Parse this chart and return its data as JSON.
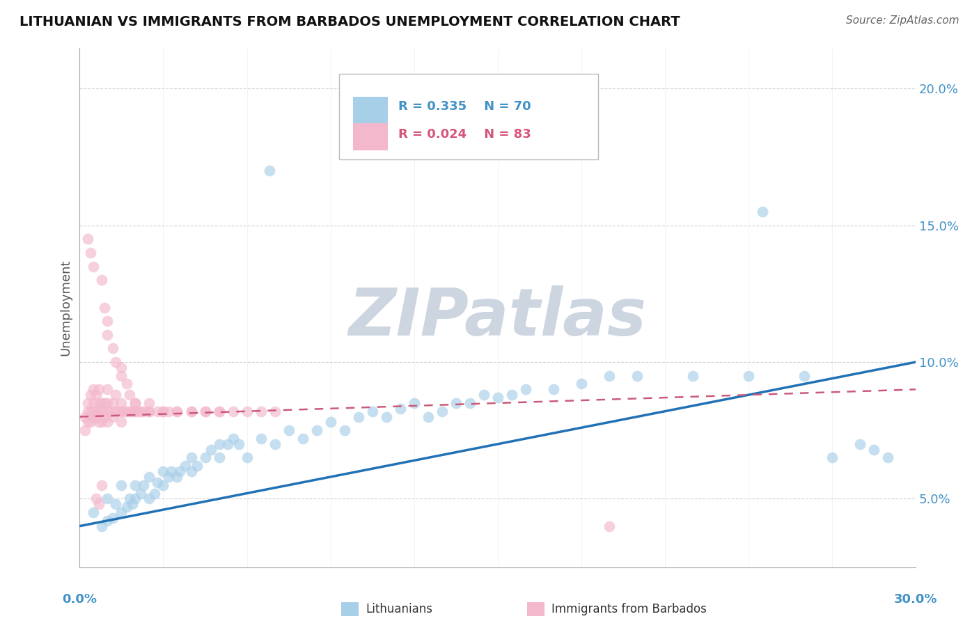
{
  "title": "LITHUANIAN VS IMMIGRANTS FROM BARBADOS UNEMPLOYMENT CORRELATION CHART",
  "source": "Source: ZipAtlas.com",
  "ylabel": "Unemployment",
  "xlim": [
    0.0,
    0.3
  ],
  "ylim": [
    0.025,
    0.215
  ],
  "yticks": [
    0.05,
    0.1,
    0.15,
    0.2
  ],
  "ytick_labels": [
    "5.0%",
    "10.0%",
    "15.0%",
    "20.0%"
  ],
  "xtick_positions": [
    0.0,
    0.03,
    0.06,
    0.09,
    0.12,
    0.15,
    0.18,
    0.21,
    0.24,
    0.27,
    0.3
  ],
  "legend_R1": "R = 0.335",
  "legend_N1": "N = 70",
  "legend_R2": "R = 0.024",
  "legend_N2": "N = 83",
  "color_blue_scatter": "#a8cfe8",
  "color_pink_scatter": "#f4b8cc",
  "color_blue_line": "#2171b5",
  "color_pink_line": "#cb5a7a",
  "color_blue_text": "#4292c6",
  "color_pink_text": "#d6567a",
  "color_grid": "#cccccc",
  "watermark_text": "ZIPatlas",
  "watermark_color": "#cdd5e0",
  "title_fontsize": 14,
  "tick_fontsize": 13,
  "scatter_size": 130,
  "scatter_alpha": 0.65,
  "blue_x": [
    0.005,
    0.008,
    0.01,
    0.01,
    0.012,
    0.013,
    0.015,
    0.015,
    0.017,
    0.018,
    0.019,
    0.02,
    0.02,
    0.022,
    0.023,
    0.025,
    0.025,
    0.027,
    0.028,
    0.03,
    0.03,
    0.032,
    0.033,
    0.035,
    0.036,
    0.038,
    0.04,
    0.04,
    0.042,
    0.045,
    0.047,
    0.05,
    0.05,
    0.053,
    0.055,
    0.057,
    0.06,
    0.065,
    0.068,
    0.07,
    0.075,
    0.08,
    0.085,
    0.09,
    0.095,
    0.1,
    0.105,
    0.11,
    0.115,
    0.12,
    0.125,
    0.13,
    0.135,
    0.14,
    0.145,
    0.15,
    0.155,
    0.16,
    0.17,
    0.18,
    0.19,
    0.2,
    0.22,
    0.24,
    0.245,
    0.26,
    0.27,
    0.28,
    0.285,
    0.29
  ],
  "blue_y": [
    0.045,
    0.04,
    0.042,
    0.05,
    0.043,
    0.048,
    0.045,
    0.055,
    0.047,
    0.05,
    0.048,
    0.05,
    0.055,
    0.052,
    0.055,
    0.05,
    0.058,
    0.052,
    0.056,
    0.055,
    0.06,
    0.058,
    0.06,
    0.058,
    0.06,
    0.062,
    0.06,
    0.065,
    0.062,
    0.065,
    0.068,
    0.065,
    0.07,
    0.07,
    0.072,
    0.07,
    0.065,
    0.072,
    0.17,
    0.07,
    0.075,
    0.072,
    0.075,
    0.078,
    0.075,
    0.08,
    0.082,
    0.08,
    0.083,
    0.085,
    0.08,
    0.082,
    0.085,
    0.085,
    0.088,
    0.087,
    0.088,
    0.09,
    0.09,
    0.092,
    0.095,
    0.095,
    0.095,
    0.095,
    0.155,
    0.095,
    0.065,
    0.07,
    0.068,
    0.065
  ],
  "pink_x": [
    0.002,
    0.002,
    0.003,
    0.003,
    0.003,
    0.004,
    0.004,
    0.004,
    0.005,
    0.005,
    0.005,
    0.005,
    0.006,
    0.006,
    0.006,
    0.007,
    0.007,
    0.007,
    0.007,
    0.008,
    0.008,
    0.008,
    0.009,
    0.009,
    0.01,
    0.01,
    0.01,
    0.01,
    0.011,
    0.012,
    0.012,
    0.013,
    0.013,
    0.014,
    0.015,
    0.015,
    0.015,
    0.016,
    0.017,
    0.018,
    0.019,
    0.02,
    0.02,
    0.021,
    0.022,
    0.023,
    0.025,
    0.025,
    0.028,
    0.03,
    0.032,
    0.035,
    0.04,
    0.045,
    0.05,
    0.055,
    0.06,
    0.065,
    0.07,
    0.008,
    0.009,
    0.01,
    0.01,
    0.012,
    0.013,
    0.015,
    0.015,
    0.017,
    0.018,
    0.02,
    0.025,
    0.03,
    0.035,
    0.04,
    0.045,
    0.05,
    0.003,
    0.004,
    0.005,
    0.006,
    0.007,
    0.008,
    0.19
  ],
  "pink_y": [
    0.075,
    0.08,
    0.078,
    0.082,
    0.085,
    0.078,
    0.082,
    0.088,
    0.08,
    0.082,
    0.085,
    0.09,
    0.08,
    0.082,
    0.088,
    0.078,
    0.082,
    0.085,
    0.09,
    0.078,
    0.082,
    0.085,
    0.08,
    0.085,
    0.078,
    0.082,
    0.085,
    0.09,
    0.082,
    0.08,
    0.085,
    0.082,
    0.088,
    0.082,
    0.078,
    0.082,
    0.085,
    0.082,
    0.082,
    0.082,
    0.082,
    0.082,
    0.085,
    0.082,
    0.082,
    0.082,
    0.082,
    0.085,
    0.082,
    0.082,
    0.082,
    0.082,
    0.082,
    0.082,
    0.082,
    0.082,
    0.082,
    0.082,
    0.082,
    0.13,
    0.12,
    0.115,
    0.11,
    0.105,
    0.1,
    0.095,
    0.098,
    0.092,
    0.088,
    0.085,
    0.082,
    0.082,
    0.082,
    0.082,
    0.082,
    0.082,
    0.145,
    0.14,
    0.135,
    0.05,
    0.048,
    0.055,
    0.04
  ]
}
